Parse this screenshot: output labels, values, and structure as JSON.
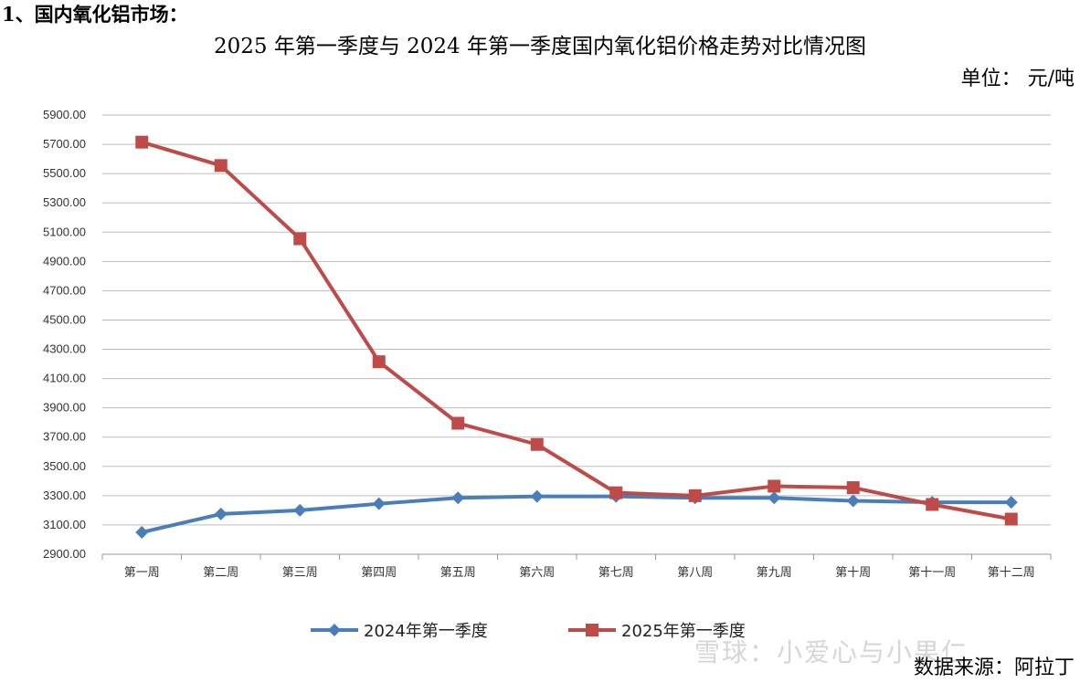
{
  "heading": "1、国内氧化铝市场：",
  "unit": "单位： 元/吨",
  "source": "数据来源：阿拉丁",
  "watermark": "雪球：小爱心与小果仁",
  "chart_data": {
    "type": "line",
    "title": "2025 年第一季度与 2024 年第一季度国内氧化铝价格走势对比情况图",
    "xlabel": "",
    "ylabel": "",
    "categories": [
      "第一周",
      "第二周",
      "第三周",
      "第四周",
      "第五周",
      "第六周",
      "第七周",
      "第八周",
      "第九周",
      "第十周",
      "第十一周",
      "第十二周"
    ],
    "ylim": [
      2900,
      5900
    ],
    "ytick_step": 200,
    "ytick_labels": [
      "2900.00",
      "3100.00",
      "3300.00",
      "3500.00",
      "3700.00",
      "3900.00",
      "4100.00",
      "4300.00",
      "4500.00",
      "4700.00",
      "4900.00",
      "5100.00",
      "5300.00",
      "5500.00",
      "5700.00",
      "5900.00"
    ],
    "grid": "horizontal",
    "legend_position": "bottom",
    "series": [
      {
        "name": "2024年第一季度",
        "color": "#4a7ebb",
        "marker": "diamond",
        "values": [
          3050,
          3175,
          3200,
          3245,
          3285,
          3295,
          3295,
          3285,
          3285,
          3265,
          3255,
          3255
        ]
      },
      {
        "name": "2025年第一季度",
        "color": "#be4b48",
        "marker": "square",
        "values": [
          5715,
          5555,
          5055,
          4215,
          3795,
          3650,
          3320,
          3300,
          3365,
          3355,
          3240,
          3140
        ]
      }
    ]
  }
}
